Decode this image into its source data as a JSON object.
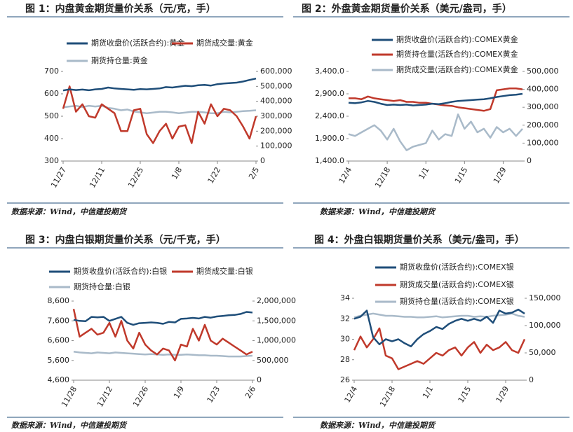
{
  "chart_data": [
    {
      "type": "line",
      "title": "图 1：内盘黄金期货量价关系（元/克，手）",
      "source": "数据来源：Wind，中信建投期货",
      "categories": [
        "11/27",
        null,
        null,
        null,
        null,
        null,
        "12/11",
        null,
        null,
        null,
        null,
        null,
        "12/25",
        null,
        null,
        null,
        null,
        null,
        "1/8",
        null,
        null,
        null,
        null,
        null,
        "1/22",
        null,
        null,
        null,
        null,
        null,
        "2/5"
      ],
      "ylim": [
        300,
        700
      ],
      "yticks": [
        300,
        400,
        500,
        600,
        700
      ],
      "y2lim": [
        0,
        600000
      ],
      "y2ticks": [
        0,
        {
          "value": 100000,
          "label": "100,000"
        },
        {
          "value": 200000,
          "label": "200,000"
        },
        {
          "value": 300000,
          "label": "300,000"
        },
        {
          "value": 400000,
          "label": "400,000"
        },
        {
          "value": 500000,
          "label": "500,000"
        },
        {
          "value": 600000,
          "label": "600,000"
        }
      ],
      "series": [
        {
          "name": "期货收盘价(活跃合约):黄金",
          "color": "#1f4e79",
          "values": [
            615,
            620,
            617,
            619,
            616,
            620,
            622,
            628,
            624,
            622,
            620,
            618,
            621,
            620,
            622,
            624,
            630,
            628,
            632,
            636,
            634,
            638,
            640,
            637,
            643,
            646,
            648,
            650,
            655,
            662,
            668
          ]
        },
        {
          "name": "期货成交量:黄金",
          "color": "#c0392b",
          "axis": "y2",
          "values": [
            350000,
            500000,
            330000,
            380000,
            300000,
            290000,
            380000,
            350000,
            320000,
            200000,
            200000,
            340000,
            350000,
            180000,
            120000,
            200000,
            250000,
            150000,
            230000,
            240000,
            120000,
            330000,
            250000,
            380000,
            300000,
            350000,
            340000,
            300000,
            230000,
            150000,
            300000
          ]
        },
        {
          "name": "期货持仓量:黄金",
          "color": "#a9bac9",
          "axis": "y2",
          "values": [
            360000,
            365000,
            370000,
            362000,
            370000,
            365000,
            370000,
            356000,
            350000,
            340000,
            345000,
            332000,
            326000,
            320000,
            325000,
            330000,
            330000,
            326000,
            320000,
            325000,
            330000,
            330000,
            326000,
            320000,
            320000,
            330000,
            326000,
            330000,
            334000,
            336000,
            340000
          ]
        }
      ]
    },
    {
      "type": "line",
      "title": "图 2：外盘黄金期货量价关系（美元/盎司，手）",
      "source": "数据来源：Wind，中信建投期货",
      "categories": [
        "12/4",
        null,
        null,
        null,
        null,
        null,
        "12/18",
        null,
        null,
        null,
        null,
        null,
        "1/1",
        null,
        null,
        null,
        null,
        null,
        "1/15",
        null,
        null,
        null,
        null,
        null,
        "1/29",
        null,
        null,
        null
      ],
      "ylim": [
        1400,
        3400
      ],
      "yticks": [
        {
          "value": 1400,
          "label": "1,400.0"
        },
        {
          "value": 1900,
          "label": "1,900.0"
        },
        {
          "value": 2400,
          "label": "2,400.0"
        },
        {
          "value": 2900,
          "label": "2,900.0"
        },
        {
          "value": 3400,
          "label": "3,400.0"
        }
      ],
      "y2lim": [
        0,
        500000
      ],
      "y2ticks": [
        0,
        {
          "value": 100000,
          "label": "100,000"
        },
        {
          "value": 200000,
          "label": "200,000"
        },
        {
          "value": 300000,
          "label": "300,000"
        },
        {
          "value": 400000,
          "label": "400,000"
        },
        {
          "value": 500000,
          "label": "500,000"
        }
      ],
      "series": [
        {
          "name": "期货收盘价(活跃合约):COMEX黄金",
          "color": "#1f4e79",
          "values": [
            2700,
            2690,
            2710,
            2740,
            2720,
            2680,
            2650,
            2660,
            2650,
            2660,
            2640,
            2650,
            2660,
            2680,
            2670,
            2690,
            2720,
            2740,
            2750,
            2760,
            2770,
            2780,
            2800,
            2830,
            2850,
            2870,
            2880,
            2900
          ]
        },
        {
          "name": "期货持仓量(活跃合约):COMEX黄金",
          "color": "#c0392b",
          "axis": "y2",
          "values": [
            350000,
            350000,
            345000,
            360000,
            350000,
            345000,
            340000,
            335000,
            340000,
            330000,
            330000,
            325000,
            325000,
            320000,
            315000,
            310000,
            308000,
            300000,
            295000,
            290000,
            285000,
            280000,
            290000,
            395000,
            400000,
            405000,
            405000,
            400000
          ]
        },
        {
          "name": "期货成交量(活跃合约):COMEX黄金",
          "color": "#a9bac9",
          "axis": "y2",
          "values": [
            150000,
            140000,
            160000,
            180000,
            200000,
            170000,
            120000,
            180000,
            110000,
            60000,
            80000,
            90000,
            100000,
            170000,
            120000,
            150000,
            140000,
            260000,
            180000,
            220000,
            160000,
            180000,
            130000,
            190000,
            160000,
            180000,
            140000,
            180000
          ]
        }
      ]
    },
    {
      "type": "line",
      "title": "图 3：内盘白银期货量价关系（元/千克，手）",
      "source": "数据来源：Wind，中信建投期货",
      "categories": [
        "11/28",
        null,
        null,
        null,
        null,
        null,
        "12/12",
        null,
        null,
        null,
        null,
        null,
        "12/26",
        null,
        null,
        null,
        null,
        null,
        "1/9",
        null,
        null,
        null,
        null,
        null,
        "1/23",
        null,
        null,
        null,
        null,
        null,
        "2/6"
      ],
      "ylim": [
        4600,
        8600
      ],
      "yticks": [
        {
          "value": 4600,
          "label": "4,600"
        },
        {
          "value": 5600,
          "label": "5,600"
        },
        {
          "value": 6600,
          "label": "6,600"
        },
        {
          "value": 7600,
          "label": "7,600"
        },
        {
          "value": 8600,
          "label": "8,600"
        }
      ],
      "y2lim": [
        0,
        2000000
      ],
      "y2ticks": [
        0,
        {
          "value": 500000,
          "label": "500,000"
        },
        {
          "value": 1000000,
          "label": "1,000,000"
        },
        {
          "value": 1500000,
          "label": "1,500,000"
        },
        {
          "value": 2000000,
          "label": "2,000,000"
        }
      ],
      "series": [
        {
          "name": "期货收盘价(活跃合约):白银",
          "color": "#1f4e79",
          "values": [
            7650,
            7600,
            7580,
            7800,
            7780,
            7800,
            7600,
            7700,
            7800,
            7500,
            7400,
            7480,
            7500,
            7520,
            7500,
            7450,
            7550,
            7520,
            7700,
            7720,
            7750,
            7720,
            7800,
            7760,
            7820,
            7850,
            7880,
            7900,
            7950,
            8050,
            8020
          ]
        },
        {
          "name": "期货成交量:白银",
          "color": "#c0392b",
          "axis": "y2",
          "values": [
            1800000,
            1100000,
            1200000,
            1300000,
            1150000,
            1200000,
            1450000,
            1100000,
            1500000,
            1000000,
            800000,
            1200000,
            900000,
            750000,
            650000,
            800000,
            750000,
            500000,
            900000,
            850000,
            1300000,
            1000000,
            1400000,
            1000000,
            900000,
            1050000,
            950000,
            850000,
            750000,
            650000,
            720000
          ]
        },
        {
          "name": "期货持仓量:白银",
          "color": "#a9bac9",
          "axis": "y2",
          "values": [
            720000,
            700000,
            690000,
            680000,
            700000,
            690000,
            680000,
            700000,
            690000,
            680000,
            670000,
            660000,
            650000,
            660000,
            650000,
            640000,
            650000,
            640000,
            640000,
            650000,
            640000,
            630000,
            630000,
            620000,
            620000,
            610000,
            600000,
            600000,
            600000,
            610000,
            620000
          ]
        }
      ]
    },
    {
      "type": "line",
      "title": "图 4：外盘白银期货量价关系（美元/盎司，手）",
      "source": "数据来源：Wind，中信建投期货",
      "categories": [
        "12/4",
        null,
        null,
        null,
        null,
        null,
        "12/18",
        null,
        null,
        null,
        null,
        null,
        "1/1",
        null,
        null,
        null,
        null,
        null,
        "1/15",
        null,
        null,
        null,
        null,
        null,
        "1/29",
        null,
        null,
        null
      ],
      "ylim": [
        26,
        34
      ],
      "yticks": [
        26,
        28,
        30,
        32,
        34
      ],
      "y2lim": [
        0,
        150000
      ],
      "y2ticks": [
        0,
        {
          "value": 50000,
          "label": "50,000"
        },
        {
          "value": 100000,
          "label": "100,000"
        },
        {
          "value": 150000,
          "label": "150,000"
        }
      ],
      "series": [
        {
          "name": "期货收盘价(活跃合约):COMEX银",
          "color": "#1f4e79",
          "values": [
            32.0,
            32.2,
            32.8,
            30.2,
            29.5,
            30.0,
            29.8,
            30.0,
            29.6,
            29.3,
            30.0,
            30.5,
            30.8,
            31.2,
            31.0,
            31.5,
            31.8,
            32.0,
            31.8,
            32.0,
            31.8,
            32.2,
            31.6,
            32.8,
            32.5,
            32.6,
            32.9,
            32.5
          ]
        },
        {
          "name": "期货成交量(活跃合约):COMEX银",
          "color": "#c0392b",
          "axis": "y2",
          "values": [
            55000,
            80000,
            60000,
            75000,
            95000,
            45000,
            40000,
            20000,
            25000,
            30000,
            35000,
            30000,
            40000,
            50000,
            45000,
            55000,
            60000,
            45000,
            60000,
            70000,
            50000,
            65000,
            55000,
            60000,
            70000,
            55000,
            50000,
            75000
          ]
        },
        {
          "name": "期货持仓量(活跃合约):COMEX银",
          "color": "#a9bac9",
          "axis": "y2",
          "values": [
            115000,
            118000,
            120000,
            122000,
            120000,
            118000,
            118000,
            117000,
            116000,
            116000,
            115000,
            115000,
            116000,
            117000,
            115000,
            116000,
            117000,
            118000,
            118000,
            116000,
            117000,
            116000,
            118000,
            119000,
            120000,
            122000,
            118000,
            116000
          ]
        }
      ]
    }
  ]
}
